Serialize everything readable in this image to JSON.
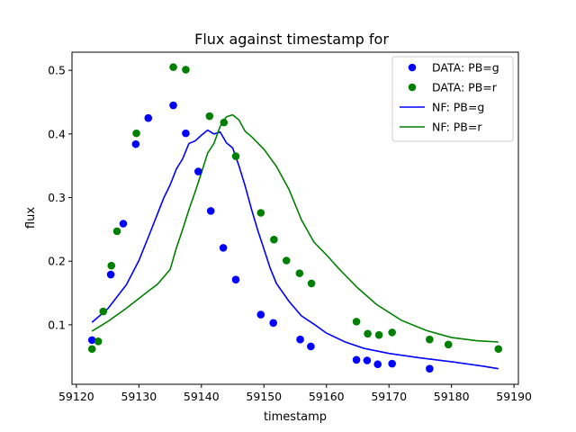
{
  "chart_data": {
    "type": "scatter",
    "title": "Flux against timestamp for",
    "xlabel": "timestamp",
    "ylabel": "flux",
    "xlim": [
      59119.3,
      59190.7
    ],
    "ylim": [
      0.0065,
      0.5285
    ],
    "xticks": [
      59120,
      59130,
      59140,
      59150,
      59160,
      59170,
      59180,
      59190
    ],
    "yticks": [
      0.1,
      0.2,
      0.3,
      0.4,
      0.5
    ],
    "legend": "upper right",
    "grid": false,
    "series": [
      {
        "name": "DATA: PB=g",
        "kind": "points",
        "color": "#0000ff",
        "x": [
          59122.5,
          59125.5,
          59127.5,
          59129.5,
          59131.5,
          59135.5,
          59137.5,
          59139.5,
          59141.5,
          59143.5,
          59145.5,
          59149.5,
          59151.5,
          59155.8,
          59157.5,
          59164.8,
          59166.5,
          59168.2,
          59170.5,
          59176.5
        ],
        "y": [
          0.076,
          0.179,
          0.259,
          0.384,
          0.425,
          0.445,
          0.401,
          0.341,
          0.279,
          0.221,
          0.171,
          0.116,
          0.103,
          0.077,
          0.066,
          0.045,
          0.044,
          0.038,
          0.039,
          0.031
        ]
      },
      {
        "name": "DATA: PB=r",
        "kind": "points",
        "color": "#008000",
        "x": [
          59122.5,
          59123.5,
          59124.3,
          59125.6,
          59126.5,
          59129.6,
          59135.5,
          59137.5,
          59141.3,
          59143.6,
          59145.5,
          59149.5,
          59151.6,
          59153.6,
          59155.7,
          59157.6,
          59164.8,
          59166.6,
          59168.4,
          59170.5,
          59176.5,
          59179.5,
          59187.5
        ],
        "y": [
          0.062,
          0.074,
          0.121,
          0.193,
          0.247,
          0.401,
          0.505,
          0.501,
          0.428,
          0.418,
          0.365,
          0.276,
          0.234,
          0.201,
          0.181,
          0.165,
          0.105,
          0.086,
          0.084,
          0.088,
          0.077,
          0.069,
          0.062
        ]
      },
      {
        "name": "NF: PB=g",
        "kind": "line",
        "color": "#0000ff",
        "x": [
          59122.5,
          59125,
          59128,
          59130,
          59132,
          59133,
          59134,
          59135,
          59136,
          59137,
          59138,
          59139,
          59140,
          59141,
          59142,
          59143,
          59144,
          59145,
          59146,
          59147,
          59148,
          59149,
          59150,
          59151,
          59152,
          59154,
          59156,
          59158,
          59160,
          59163,
          59166,
          59170,
          59175,
          59180,
          59185,
          59187.5
        ],
        "y": [
          0.104,
          0.125,
          0.163,
          0.201,
          0.25,
          0.275,
          0.3,
          0.32,
          0.345,
          0.361,
          0.385,
          0.389,
          0.398,
          0.406,
          0.4,
          0.403,
          0.386,
          0.378,
          0.35,
          0.318,
          0.282,
          0.249,
          0.219,
          0.189,
          0.165,
          0.137,
          0.114,
          0.101,
          0.087,
          0.073,
          0.063,
          0.055,
          0.048,
          0.042,
          0.035,
          0.031
        ]
      },
      {
        "name": "NF: PB=r",
        "kind": "line",
        "color": "#008000",
        "x": [
          59122.5,
          59125,
          59128,
          59131,
          59133,
          59135,
          59136,
          59137,
          59138,
          59139,
          59140,
          59141,
          59142,
          59143,
          59144,
          59145,
          59146,
          59147,
          59148,
          59150,
          59152,
          59154,
          59156,
          59158,
          59160,
          59162,
          59165,
          59168,
          59172,
          59176,
          59180,
          59184,
          59187.5
        ],
        "y": [
          0.09,
          0.105,
          0.126,
          0.149,
          0.164,
          0.187,
          0.221,
          0.25,
          0.281,
          0.309,
          0.339,
          0.37,
          0.385,
          0.412,
          0.427,
          0.43,
          0.422,
          0.404,
          0.396,
          0.376,
          0.349,
          0.313,
          0.265,
          0.23,
          0.21,
          0.188,
          0.158,
          0.132,
          0.107,
          0.091,
          0.08,
          0.075,
          0.073
        ]
      }
    ]
  }
}
